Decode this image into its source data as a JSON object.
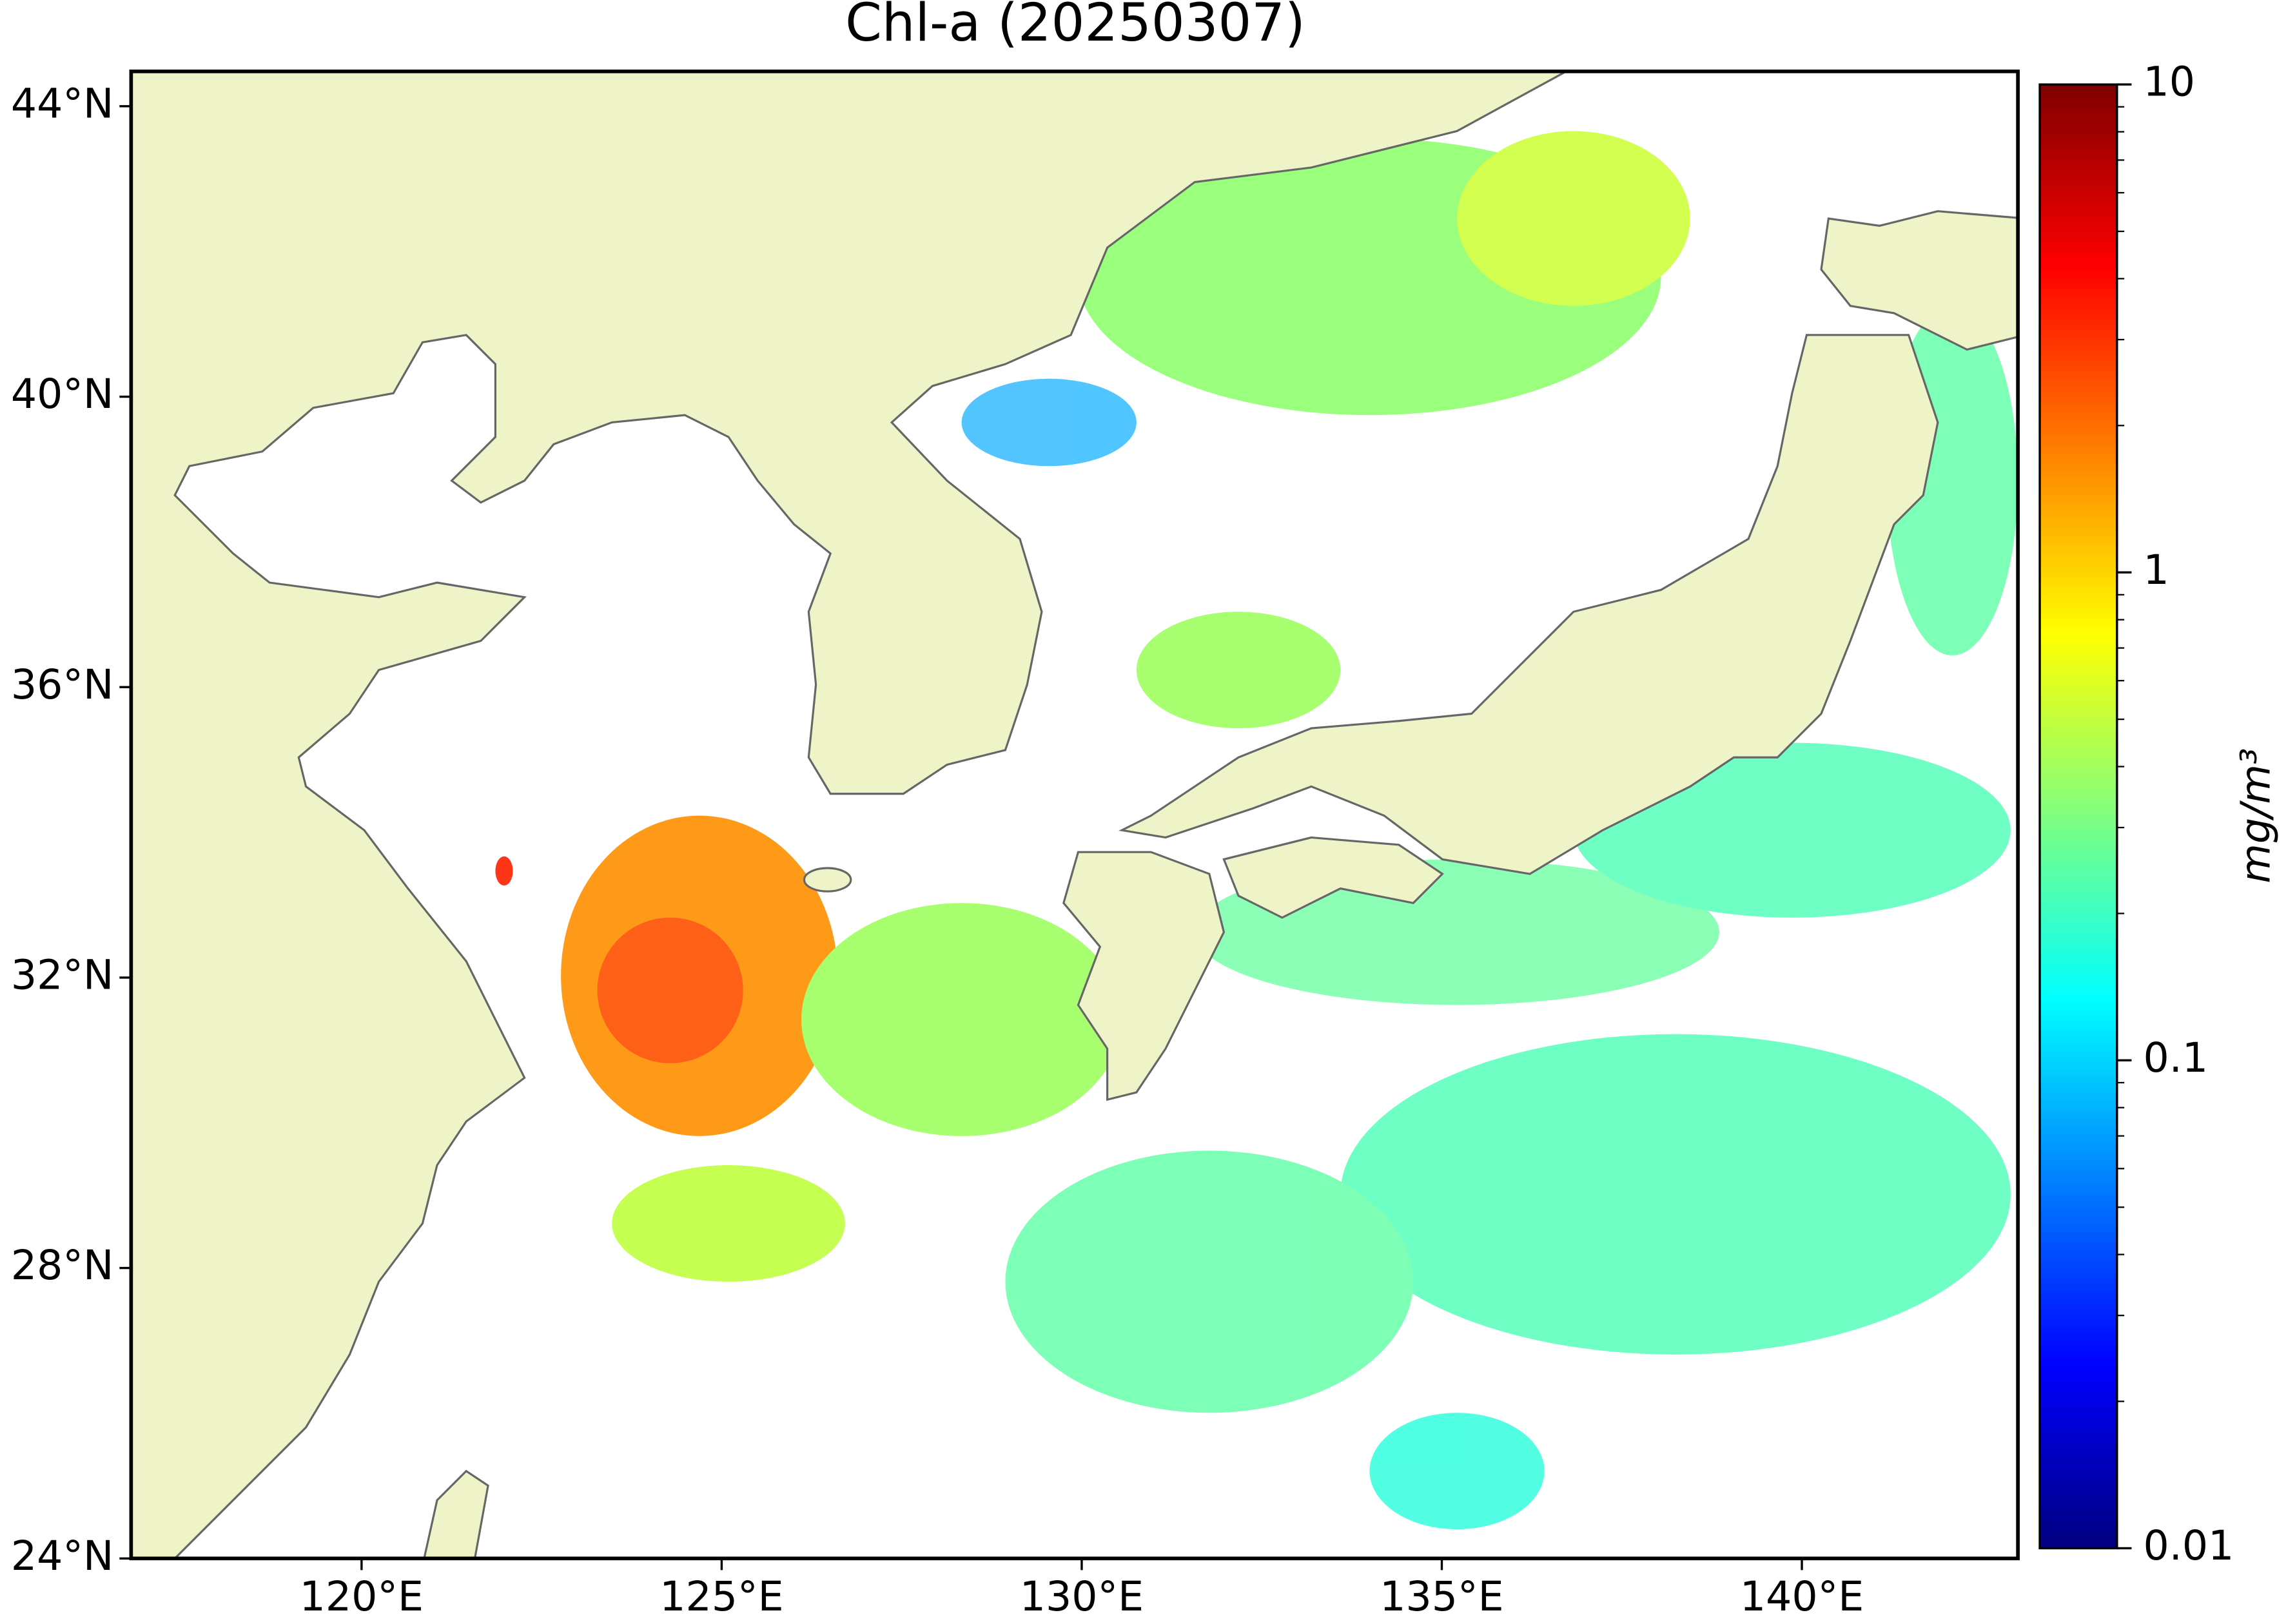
{
  "chart_data": {
    "type": "map",
    "title": "Chl-a (20250307)",
    "xlim": [
      116.8,
      143.0
    ],
    "ylim": [
      24.0,
      44.48
    ],
    "xticks": [
      {
        "value": 120,
        "label": "120°E"
      },
      {
        "value": 125,
        "label": "125°E"
      },
      {
        "value": 130,
        "label": "130°E"
      },
      {
        "value": 135,
        "label": "135°E"
      },
      {
        "value": 140,
        "label": "140°E"
      }
    ],
    "yticks": [
      {
        "value": 24,
        "label": "24°N"
      },
      {
        "value": 28,
        "label": "28°N"
      },
      {
        "value": 32,
        "label": "32°N"
      },
      {
        "value": 36,
        "label": "36°N"
      },
      {
        "value": 40,
        "label": "40°N"
      },
      {
        "value": 44,
        "label": "44°N"
      }
    ],
    "colorbar": {
      "label": "mg/m³",
      "colormap": [
        "#00007f",
        "#0000ff",
        "#007fff",
        "#00ffff",
        "#7fff7f",
        "#ffff00",
        "#ff7f00",
        "#ff0000",
        "#7f0000"
      ],
      "log": true,
      "clim": [
        0.01,
        10
      ],
      "ticks": [
        0.01,
        0.1,
        1,
        10
      ],
      "minor_ticks": [
        0.02,
        0.03,
        0.04,
        0.05,
        0.06,
        0.07,
        0.08,
        0.09,
        0.2,
        0.3,
        0.4,
        0.5,
        0.6,
        0.7,
        0.8,
        0.9,
        2,
        3,
        4,
        5,
        6,
        7,
        8,
        9
      ]
    },
    "land_color": "#eff3c8"
  }
}
